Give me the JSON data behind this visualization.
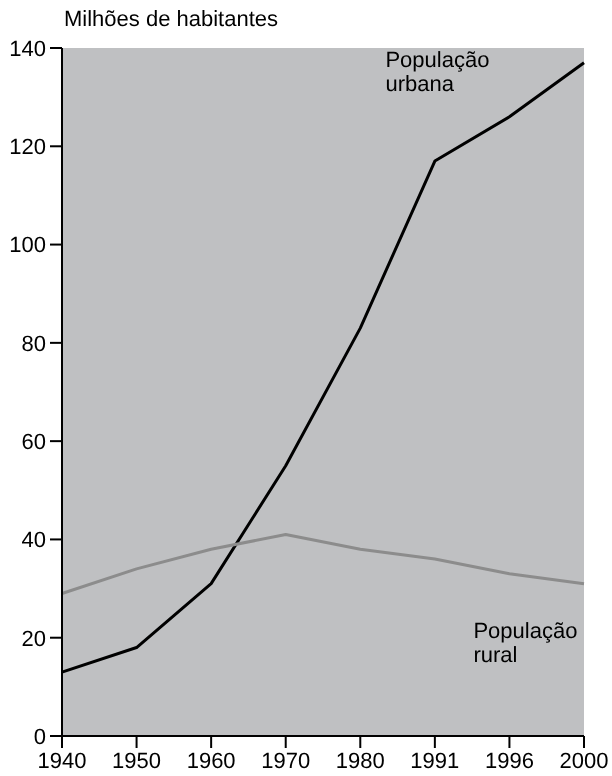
{
  "chart_data": {
    "type": "line",
    "ylabel": "Milhões de habitantes",
    "categories": [
      "1940",
      "1950",
      "1960",
      "1970",
      "1980",
      "1991",
      "1996",
      "2000"
    ],
    "series": [
      {
        "name": "População urbana",
        "color": "#000000",
        "values": [
          13,
          18,
          31,
          55,
          83,
          117,
          126,
          137
        ]
      },
      {
        "name": "População rural",
        "color": "#8c8c8c",
        "values": [
          29,
          34,
          38,
          41,
          38,
          36,
          33,
          31
        ]
      }
    ],
    "ylim": [
      0,
      140
    ],
    "yticks": [
      0,
      20,
      40,
      60,
      80,
      100,
      120,
      140
    ],
    "grid": false,
    "marker": "none",
    "line_style": "solid"
  }
}
